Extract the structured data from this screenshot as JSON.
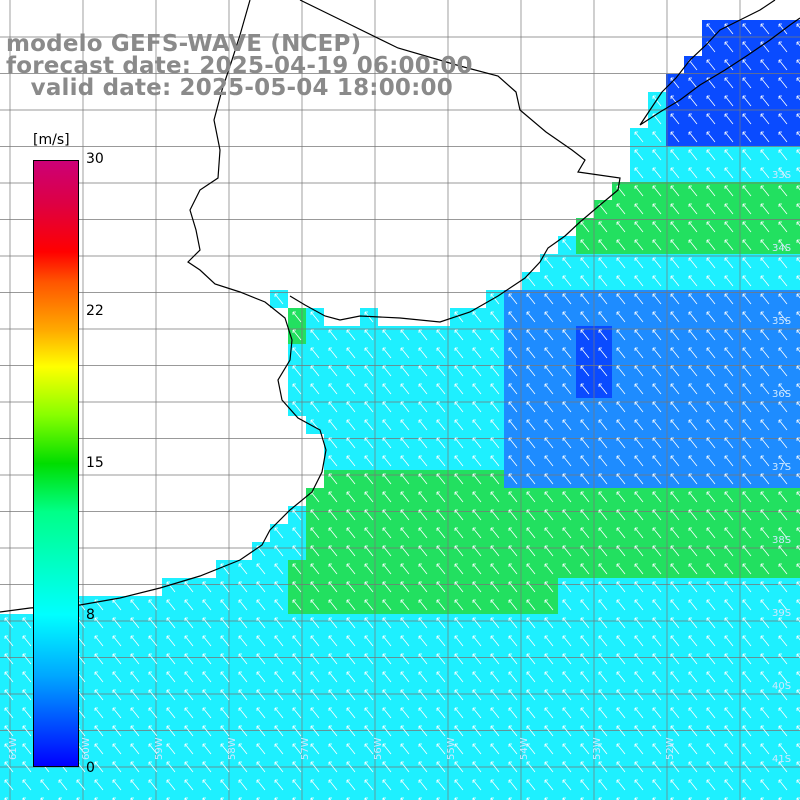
{
  "header": {
    "title": "modelo GEFS-WAVE (NCEP)",
    "forecast_line": "forecast date: 2025-04-19 06:00:00",
    "valid_line": "   valid date: 2025-05-04 18:00:00"
  },
  "colorbar": {
    "unit": "[m/s]",
    "ticks": [
      "30",
      "22",
      "15",
      "8",
      "0"
    ]
  },
  "map": {
    "lat_labels": [
      "33S",
      "34S",
      "35S",
      "36S",
      "37S",
      "38S",
      "39S",
      "40S",
      "41S"
    ],
    "lon_labels": [
      "61W",
      "60W",
      "59W",
      "58W",
      "57W",
      "56W",
      "55W",
      "54W",
      "53W",
      "52W"
    ],
    "colors": {
      "land": "#ffffff",
      "coast": "#000000",
      "grid": "#777777",
      "blue": "#0a4bff",
      "mid_blue": "#1e8cff",
      "cyan": "#1ef0ff",
      "green": "#22e060",
      "arrow": "#ffffff"
    }
  }
}
